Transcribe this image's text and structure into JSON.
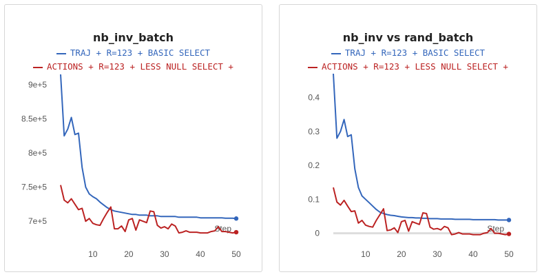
{
  "colors": {
    "traj": "#3366bb",
    "actions": "#bb2222",
    "axis_text": "#555555",
    "zero_line": "#dddddd"
  },
  "chart_data": [
    {
      "type": "line",
      "title": "nb_inv_batch",
      "xlabel": "Step",
      "ylabel": "",
      "xlim": [
        1,
        50
      ],
      "ylim": [
        676000,
        916000
      ],
      "xticks": [
        10,
        20,
        30,
        40,
        50
      ],
      "xtick_labels": [
        "10",
        "20",
        "30",
        "40",
        "50"
      ],
      "yticks": [
        700000,
        750000,
        800000,
        850000,
        900000
      ],
      "ytick_labels": [
        "7e+5",
        "7.5e+5",
        "8e+5",
        "8.5e+5",
        "9e+5"
      ],
      "grid": false,
      "legend_position": "top",
      "series": [
        {
          "name": "TRAJ + R=123 + BASIC SELECT",
          "color": "#3366bb",
          "x": [
            1,
            2,
            3,
            4,
            5,
            6,
            7,
            8,
            9,
            10,
            11,
            12,
            13,
            14,
            15,
            16,
            17,
            18,
            19,
            20,
            21,
            22,
            23,
            24,
            25,
            26,
            27,
            28,
            29,
            30,
            31,
            32,
            33,
            34,
            35,
            36,
            37,
            38,
            39,
            40,
            41,
            42,
            43,
            44,
            45,
            46,
            47,
            48,
            49,
            50
          ],
          "y": [
            915000,
            825000,
            835000,
            852000,
            827000,
            829000,
            779000,
            750000,
            740000,
            736000,
            733000,
            728000,
            724000,
            720000,
            717000,
            715000,
            714000,
            713000,
            712000,
            711000,
            710000,
            710000,
            709000,
            709000,
            709000,
            708000,
            708000,
            708000,
            707000,
            707000,
            707000,
            707000,
            707000,
            706000,
            706000,
            706000,
            706000,
            706000,
            706000,
            705000,
            705000,
            705000,
            705000,
            705000,
            705000,
            705000,
            704500,
            704500,
            704500,
            704000
          ]
        },
        {
          "name": "ACTIONS + R=123 + LESS NULL SELECT +",
          "color": "#bb2222",
          "x": [
            1,
            2,
            3,
            4,
            5,
            6,
            7,
            8,
            9,
            10,
            11,
            12,
            13,
            14,
            15,
            16,
            17,
            18,
            19,
            20,
            21,
            22,
            23,
            24,
            25,
            26,
            27,
            28,
            29,
            30,
            31,
            32,
            33,
            34,
            35,
            36,
            37,
            38,
            39,
            40,
            41,
            42,
            43,
            44,
            45,
            46,
            47,
            48,
            49,
            50
          ],
          "y": [
            753000,
            731000,
            727000,
            733000,
            725000,
            717000,
            719000,
            700000,
            704000,
            697000,
            695000,
            694000,
            704000,
            713000,
            721000,
            689000,
            689000,
            693000,
            685000,
            702000,
            704000,
            687000,
            702000,
            700000,
            698000,
            715000,
            714000,
            694000,
            690000,
            692000,
            689000,
            696000,
            693000,
            683000,
            684000,
            686000,
            684000,
            684000,
            684000,
            683000,
            683000,
            683000,
            685000,
            686000,
            692000,
            685000,
            685000,
            684000,
            683000,
            684000
          ]
        }
      ]
    },
    {
      "type": "line",
      "title": "nb_inv vs rand_batch",
      "xlabel": "Step",
      "ylabel": "",
      "xlim": [
        1,
        50
      ],
      "ylim": [
        -0.013,
        0.47
      ],
      "xticks": [
        10,
        20,
        30,
        40,
        50
      ],
      "xtick_labels": [
        "10",
        "20",
        "30",
        "40",
        "50"
      ],
      "yticks": [
        0,
        0.1,
        0.2,
        0.3,
        0.4
      ],
      "ytick_labels": [
        "0",
        "0.1",
        "0.2",
        "0.3",
        "0.4"
      ],
      "grid": false,
      "legend_position": "top",
      "series": [
        {
          "name": "TRAJ + R=123 + BASIC SELECT",
          "color": "#3366bb",
          "x": [
            1,
            2,
            3,
            4,
            5,
            6,
            7,
            8,
            9,
            10,
            11,
            12,
            13,
            14,
            15,
            16,
            17,
            18,
            19,
            20,
            21,
            22,
            23,
            24,
            25,
            26,
            27,
            28,
            29,
            30,
            31,
            32,
            33,
            34,
            35,
            36,
            37,
            38,
            39,
            40,
            41,
            42,
            43,
            44,
            45,
            46,
            47,
            48,
            49,
            50
          ],
          "y": [
            0.47,
            0.28,
            0.3,
            0.335,
            0.285,
            0.29,
            0.19,
            0.135,
            0.11,
            0.1,
            0.09,
            0.08,
            0.07,
            0.062,
            0.058,
            0.055,
            0.053,
            0.052,
            0.05,
            0.048,
            0.047,
            0.046,
            0.046,
            0.045,
            0.045,
            0.044,
            0.044,
            0.043,
            0.043,
            0.043,
            0.042,
            0.042,
            0.042,
            0.042,
            0.041,
            0.041,
            0.041,
            0.041,
            0.041,
            0.04,
            0.04,
            0.04,
            0.04,
            0.04,
            0.04,
            0.04,
            0.039,
            0.039,
            0.039,
            0.039
          ]
        },
        {
          "name": "ACTIONS + R=123 + LESS NULL SELECT +",
          "color": "#bb2222",
          "x": [
            1,
            2,
            3,
            4,
            5,
            6,
            7,
            8,
            9,
            10,
            11,
            12,
            13,
            14,
            15,
            16,
            17,
            18,
            19,
            20,
            21,
            22,
            23,
            24,
            25,
            26,
            27,
            28,
            29,
            30,
            31,
            32,
            33,
            34,
            35,
            36,
            37,
            38,
            39,
            40,
            41,
            42,
            43,
            44,
            45,
            46,
            47,
            48,
            49,
            50
          ],
          "y": [
            0.135,
            0.092,
            0.083,
            0.097,
            0.08,
            0.064,
            0.066,
            0.03,
            0.038,
            0.024,
            0.02,
            0.018,
            0.038,
            0.055,
            0.072,
            0.008,
            0.01,
            0.016,
            0.002,
            0.034,
            0.038,
            0.006,
            0.034,
            0.03,
            0.026,
            0.06,
            0.058,
            0.018,
            0.012,
            0.014,
            0.01,
            0.02,
            0.016,
            -0.004,
            -0.002,
            0.002,
            -0.002,
            -0.002,
            -0.002,
            -0.004,
            -0.004,
            -0.004,
            0.0,
            0.002,
            0.014,
            0.0,
            0.0,
            -0.002,
            -0.004,
            -0.002
          ]
        }
      ]
    }
  ]
}
